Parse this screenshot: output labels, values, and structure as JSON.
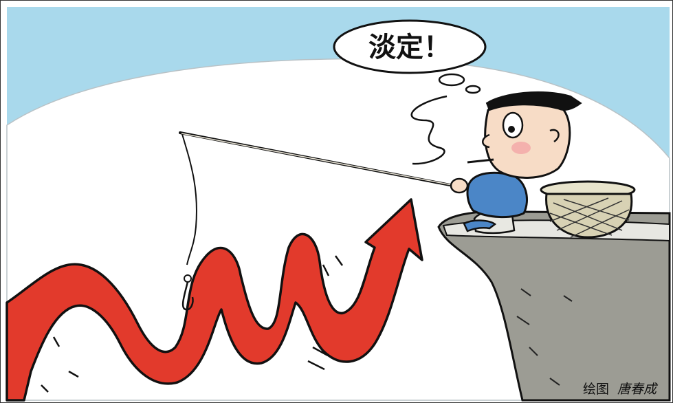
{
  "speech_bubble": {
    "text": "淡定！"
  },
  "credit": {
    "label": "绘图",
    "author": "唐春成"
  },
  "colors": {
    "sky": "#a9d9ec",
    "white_ground": "#ffffff",
    "arrow_red": "#e23a2c",
    "cliff_gray": "#9c9c94",
    "shirt_blue": "#4b86c7",
    "skin": "#f7dcc6",
    "hair": "#111111"
  },
  "illustration": {
    "characters": [
      "man-fishing"
    ],
    "objects": [
      "fishing-rod",
      "fishing-hook",
      "rising-red-arrow",
      "cliff",
      "fish-basket"
    ]
  }
}
